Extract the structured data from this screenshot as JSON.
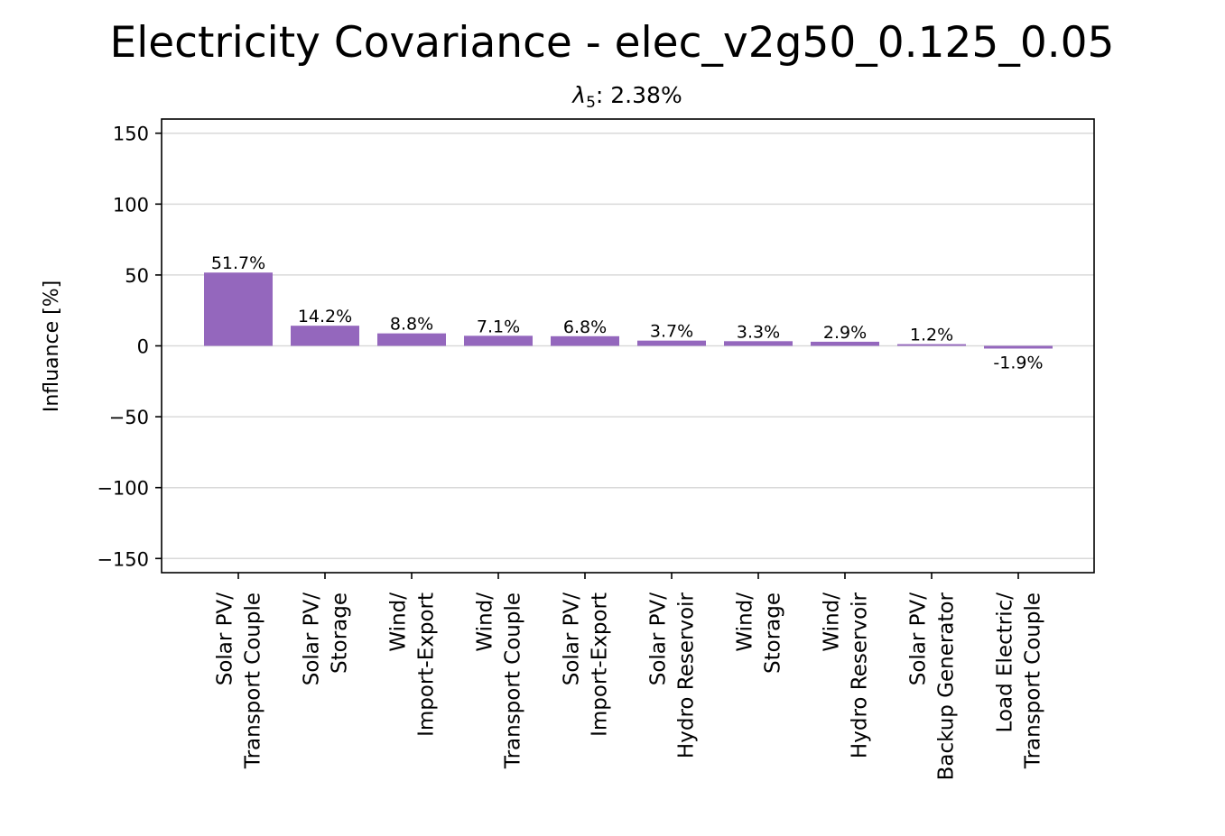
{
  "chart_data": {
    "type": "bar",
    "title": "Electricity Covariance - elec_v2g50_0.125_0.05",
    "subtitle": {
      "symbol": "λ",
      "subscript": "5",
      "text": ": 2.38%"
    },
    "xlabel": "",
    "ylabel": "Influance [%]",
    "ylim": [
      -160,
      160
    ],
    "yticks": [
      150,
      100,
      50,
      0,
      -50,
      -100,
      -150
    ],
    "ytick_labels": [
      "150",
      "100",
      "50",
      "0",
      "−50",
      "−100",
      "−150"
    ],
    "grid": "y",
    "bar_color": "#9467bd",
    "categories": [
      [
        "Solar PV/",
        "Transport Couple"
      ],
      [
        "Solar PV/",
        "Storage"
      ],
      [
        "Wind/",
        "Import-Export"
      ],
      [
        "Wind/",
        "Transport Couple"
      ],
      [
        "Solar PV/",
        "Import-Export"
      ],
      [
        "Solar PV/",
        "Hydro Reservoir"
      ],
      [
        "Wind/",
        "Storage"
      ],
      [
        "Wind/",
        "Hydro Reservoir"
      ],
      [
        "Solar PV/",
        "Backup Generator"
      ],
      [
        "Load Electric/",
        "Transport Couple"
      ]
    ],
    "values": [
      51.7,
      14.2,
      8.8,
      7.1,
      6.8,
      3.7,
      3.3,
      2.9,
      1.2,
      -1.9
    ],
    "value_labels": [
      "51.7%",
      "14.2%",
      "8.8%",
      "7.1%",
      "6.8%",
      "3.7%",
      "3.3%",
      "2.9%",
      "1.2%",
      "-1.9%"
    ]
  }
}
